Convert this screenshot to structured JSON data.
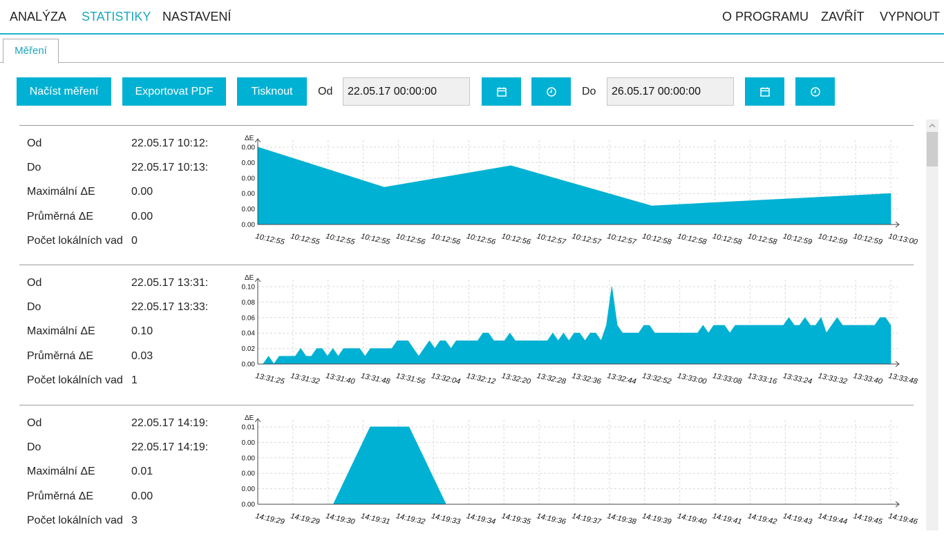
{
  "nav": {
    "left": [
      "ANALÝZA",
      "STATISTIKY",
      "NASTAVENÍ"
    ],
    "right": [
      "O PROGRAMU",
      "ZAVŘÍT",
      "VYPNOUT"
    ],
    "active": "STATISTIKY"
  },
  "tab": {
    "label": "Měření"
  },
  "toolbar": {
    "load": "Načíst měření",
    "export": "Exportovat PDF",
    "print": "Tisknout",
    "from_label": "Od",
    "from_value": "22.05.17 00:00:00",
    "to_label": "Do",
    "to_value": "26.05.17 00:00:00",
    "calendar_icon": "calendar-icon",
    "clock_icon": "clock-icon"
  },
  "labels": {
    "from": "Od",
    "to": "Do",
    "max": "Maximální  ΔE",
    "avg": "Průměrná  ΔE",
    "defects": "Počet lokálních vad"
  },
  "measurements": [
    {
      "from": "22.05.17 10:12:",
      "to": "22.05.17 10:13:",
      "max": "0.00",
      "avg": "0.00",
      "defects": "0"
    },
    {
      "from": "22.05.17 13:31:",
      "to": "22.05.17 13:33:",
      "max": "0.10",
      "avg": "0.03",
      "defects": "1"
    },
    {
      "from": "22.05.17 14:19:",
      "to": "22.05.17 14:19:",
      "max": "0.01",
      "avg": "0.00",
      "defects": "3"
    }
  ],
  "colors": {
    "accent": "#00b1d3",
    "fill": "#00b1d3"
  },
  "chart_data": [
    {
      "type": "area",
      "ylabel": "ΔE",
      "y_ticks": [
        "0.00",
        "0.00",
        "0.00",
        "0.00",
        "0.00",
        "0.00"
      ],
      "ylim": [
        0,
        0.005
      ],
      "x_ticks": [
        "10:12:55",
        "10:12:55",
        "10:12:55",
        "10:12:55",
        "10:12:56",
        "10:12:56",
        "10:12:56",
        "10:12:56",
        "10:12:57",
        "10:12:57",
        "10:12:57",
        "10:12:58",
        "10:12:58",
        "10:12:58",
        "10:12:58",
        "10:12:59",
        "10:12:59",
        "10:12:59",
        "10:13:00"
      ],
      "values": [
        0.005,
        0.0024,
        0.0038,
        0.0012,
        0.002
      ],
      "value_positions": [
        0,
        3.6,
        7.2,
        11.2,
        18
      ]
    },
    {
      "type": "area",
      "ylabel": "ΔE",
      "y_ticks": [
        "0.00",
        "0.02",
        "0.04",
        "0.06",
        "0.08",
        "0.10"
      ],
      "ylim": [
        0,
        0.1
      ],
      "x_ticks": [
        "13:31:25",
        "13:31:32",
        "13:31:40",
        "13:31:48",
        "13:31:56",
        "13:32:04",
        "13:32:12",
        "13:32:20",
        "13:32:28",
        "13:32:36",
        "13:32:44",
        "13:32:52",
        "13:33:00",
        "13:33:08",
        "13:33:16",
        "13:33:24",
        "13:33:32",
        "13:33:40",
        "13:33:48"
      ],
      "values": [
        0.0,
        0.0,
        0.01,
        0.0,
        0.01,
        0.01,
        0.01,
        0.01,
        0.02,
        0.01,
        0.01,
        0.02,
        0.02,
        0.01,
        0.02,
        0.01,
        0.02,
        0.02,
        0.02,
        0.02,
        0.01,
        0.02,
        0.02,
        0.02,
        0.02,
        0.02,
        0.03,
        0.03,
        0.03,
        0.02,
        0.01,
        0.02,
        0.03,
        0.02,
        0.03,
        0.03,
        0.02,
        0.03,
        0.03,
        0.03,
        0.03,
        0.03,
        0.04,
        0.04,
        0.03,
        0.03,
        0.03,
        0.04,
        0.03,
        0.03,
        0.03,
        0.03,
        0.03,
        0.03,
        0.03,
        0.04,
        0.03,
        0.04,
        0.03,
        0.04,
        0.04,
        0.03,
        0.04,
        0.04,
        0.03,
        0.05,
        0.1,
        0.05,
        0.04,
        0.04,
        0.04,
        0.04,
        0.05,
        0.05,
        0.04,
        0.04,
        0.04,
        0.04,
        0.04,
        0.04,
        0.04,
        0.04,
        0.04,
        0.05,
        0.04,
        0.05,
        0.05,
        0.05,
        0.04,
        0.05,
        0.05,
        0.05,
        0.05,
        0.05,
        0.05,
        0.05,
        0.05,
        0.05,
        0.05,
        0.06,
        0.05,
        0.05,
        0.06,
        0.05,
        0.05,
        0.06,
        0.04,
        0.05,
        0.06,
        0.05,
        0.05,
        0.05,
        0.05,
        0.05,
        0.05,
        0.05,
        0.06,
        0.06,
        0.05
      ]
    },
    {
      "type": "area",
      "ylabel": "ΔE",
      "y_ticks": [
        "0.00",
        "0.00",
        "0.00",
        "0.00",
        "0.00",
        "0.01"
      ],
      "ylim": [
        0,
        0.01
      ],
      "x_ticks": [
        "14:19:29",
        "14:19:29",
        "14:19:30",
        "14:19:31",
        "14:19:32",
        "14:19:33",
        "14:19:34",
        "14:19:35",
        "14:19:36",
        "14:19:37",
        "14:19:38",
        "14:19:39",
        "14:19:40",
        "14:19:41",
        "14:19:42",
        "14:19:43",
        "14:19:44",
        "14:19:45",
        "14:19:46"
      ],
      "values": [
        0,
        0,
        0.01,
        0.01,
        0,
        0
      ],
      "value_positions": [
        0,
        2.15,
        3.2,
        4.3,
        5.35,
        18
      ]
    }
  ]
}
